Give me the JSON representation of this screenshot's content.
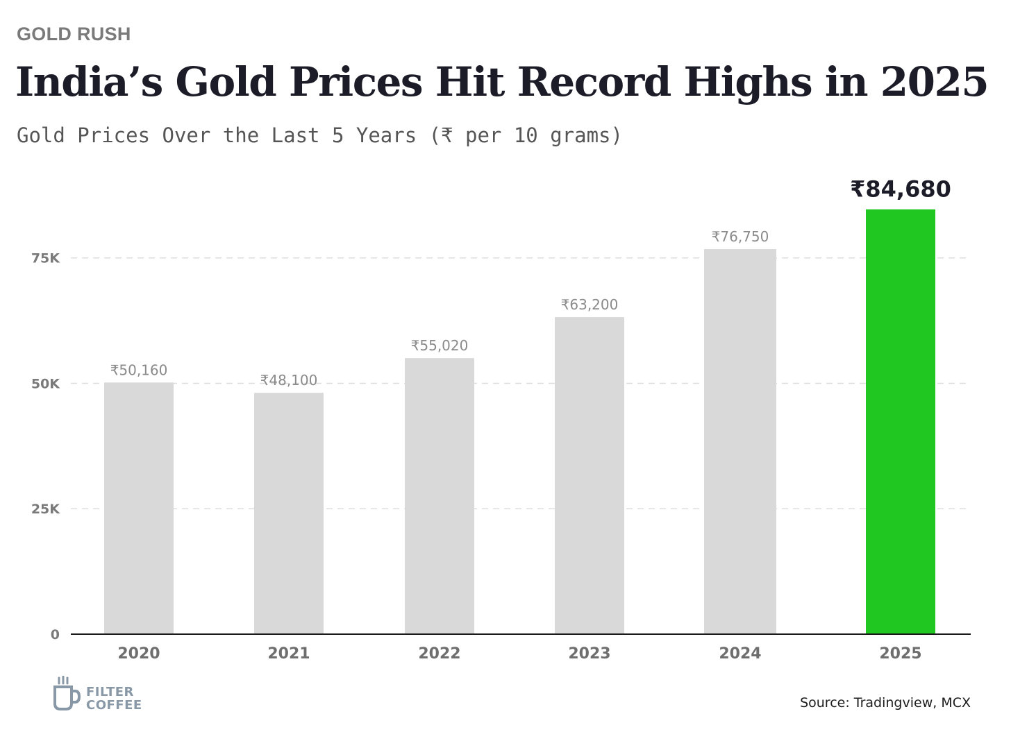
{
  "header": {
    "kicker": "GOLD RUSH",
    "title": "India’s Gold Prices Hit Record Highs in 2025",
    "subtitle": "Gold Prices Over the Last 5 Years (₹ per 10 grams)"
  },
  "chart_data": {
    "type": "bar",
    "categories": [
      "2020",
      "2021",
      "2022",
      "2023",
      "2024",
      "2025"
    ],
    "values": [
      50160,
      48100,
      55020,
      63200,
      76750,
      84680
    ],
    "data_labels": [
      "₹50,160",
      "₹48,100",
      "₹55,020",
      "₹63,200",
      "₹76,750",
      "₹84,680"
    ],
    "highlight_index": 5,
    "yticks": [
      0,
      25000,
      50000,
      75000
    ],
    "ytick_labels": [
      "0",
      "25K",
      "50K",
      "75K"
    ],
    "ylim": [
      0,
      91000
    ],
    "grid": "horizontal dashed",
    "colors": {
      "bar": "#d9d9d9",
      "highlight": "#21c721",
      "axis": "#1a1a1a",
      "grid": "#dddddd"
    }
  },
  "footer": {
    "logo": {
      "line1": "FILTER",
      "line2": "COFFEE",
      "icon": "coffee-cup-icon"
    },
    "source": "Source: Tradingview, MCX"
  }
}
